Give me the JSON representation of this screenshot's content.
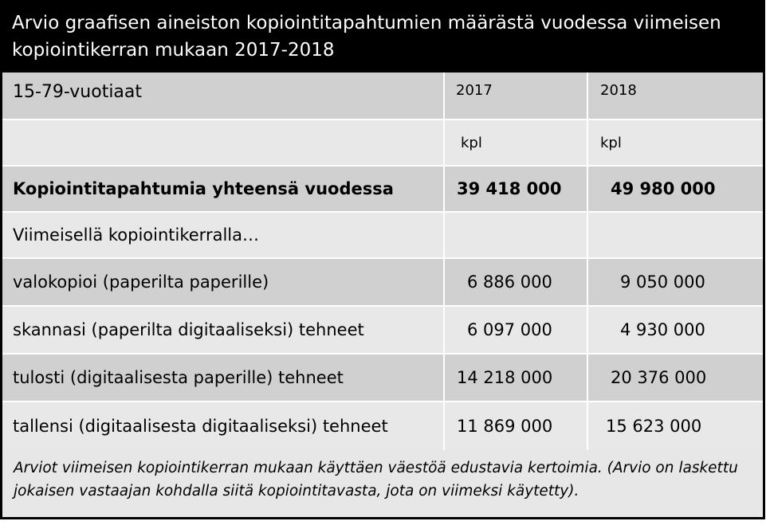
{
  "title": "Arvio graafisen aineiston kopiointitapahtumien määrästä vuodessa viimeisen kopiointikerran mukaan  2017-2018",
  "chart_data": {
    "type": "table",
    "header": {
      "label": "15-79-vuotiaat",
      "col1": "2017",
      "col2": "2018"
    },
    "units": {
      "label": "",
      "col1": "kpl",
      "col2": "kpl"
    },
    "rows": [
      {
        "label": "Kopiointitapahtumia yhteensä vuodessa",
        "v2017": "39 418 000",
        "v2018": "49 980 000",
        "bold": true
      },
      {
        "label": "Viimeisellä kopiointikerralla…",
        "v2017": "",
        "v2018": ""
      },
      {
        "label": "valokopioi (paperilta paperille)",
        "v2017": "6 886 000",
        "v2018": "9 050 000"
      },
      {
        "label": "skannasi (paperilta digitaaliseksi) tehneet",
        "v2017": "6 097 000",
        "v2018": "4 930 000"
      },
      {
        "label": "tulosti (digitaalisesta paperille) tehneet",
        "v2017": "14 218 000",
        "v2018": "20 376 000"
      },
      {
        "label": "tallensi (digitaalisesta digitaaliseksi) tehneet",
        "v2017": "11 869 000",
        "v2018": "15 623 000"
      }
    ],
    "values_2017": [
      39418000,
      null,
      6886000,
      6097000,
      14218000,
      11869000
    ],
    "values_2018": [
      49980000,
      null,
      9050000,
      4930000,
      20376000,
      15623000
    ]
  },
  "footnote": "Arviot viimeisen kopiointikerran mukaan käyttäen väestöä edustavia kertoimia. (Arvio on laskettu jokaisen vastaajan kohdalla siitä kopiointitavasta, jota on viimeksi käytetty)."
}
